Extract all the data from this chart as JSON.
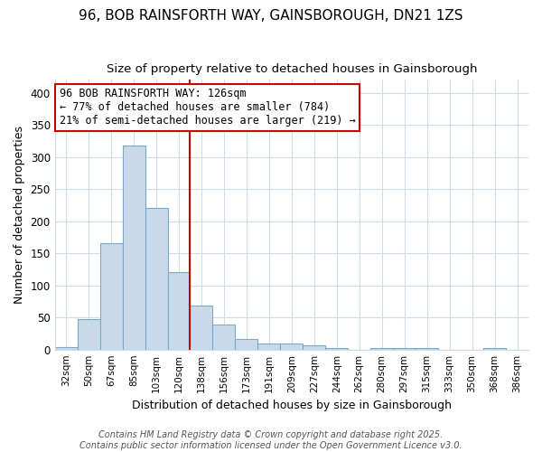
{
  "title": "96, BOB RAINSFORTH WAY, GAINSBOROUGH, DN21 1ZS",
  "subtitle": "Size of property relative to detached houses in Gainsborough",
  "xlabel": "Distribution of detached houses by size in Gainsborough",
  "ylabel": "Number of detached properties",
  "bar_labels": [
    "32sqm",
    "50sqm",
    "67sqm",
    "85sqm",
    "103sqm",
    "120sqm",
    "138sqm",
    "156sqm",
    "173sqm",
    "191sqm",
    "209sqm",
    "227sqm",
    "244sqm",
    "262sqm",
    "280sqm",
    "297sqm",
    "315sqm",
    "333sqm",
    "350sqm",
    "368sqm",
    "386sqm"
  ],
  "bar_values": [
    4,
    47,
    165,
    317,
    220,
    121,
    68,
    39,
    17,
    10,
    10,
    6,
    3,
    0,
    3,
    2,
    3,
    0,
    0,
    3,
    0
  ],
  "bar_color": "#c8daea",
  "bar_edge_color": "#7ba8c8",
  "vline_x": 5.5,
  "vline_color": "#cc0000",
  "annotation_text": "96 BOB RAINSFORTH WAY: 126sqm\n← 77% of detached houses are smaller (784)\n21% of semi-detached houses are larger (219) →",
  "annotation_box_color": "#ffffff",
  "annotation_box_edge_color": "#cc0000",
  "ylim": [
    0,
    420
  ],
  "yticks": [
    0,
    50,
    100,
    150,
    200,
    250,
    300,
    350,
    400
  ],
  "bg_color": "#ffffff",
  "plot_bg_color": "#ffffff",
  "grid_color": "#d0dce8",
  "footer": "Contains HM Land Registry data © Crown copyright and database right 2025.\nContains public sector information licensed under the Open Government Licence v3.0.",
  "title_fontsize": 11,
  "subtitle_fontsize": 9.5,
  "annotation_fontsize": 8.5,
  "ylabel_fontsize": 9,
  "xlabel_fontsize": 9,
  "footer_fontsize": 7
}
